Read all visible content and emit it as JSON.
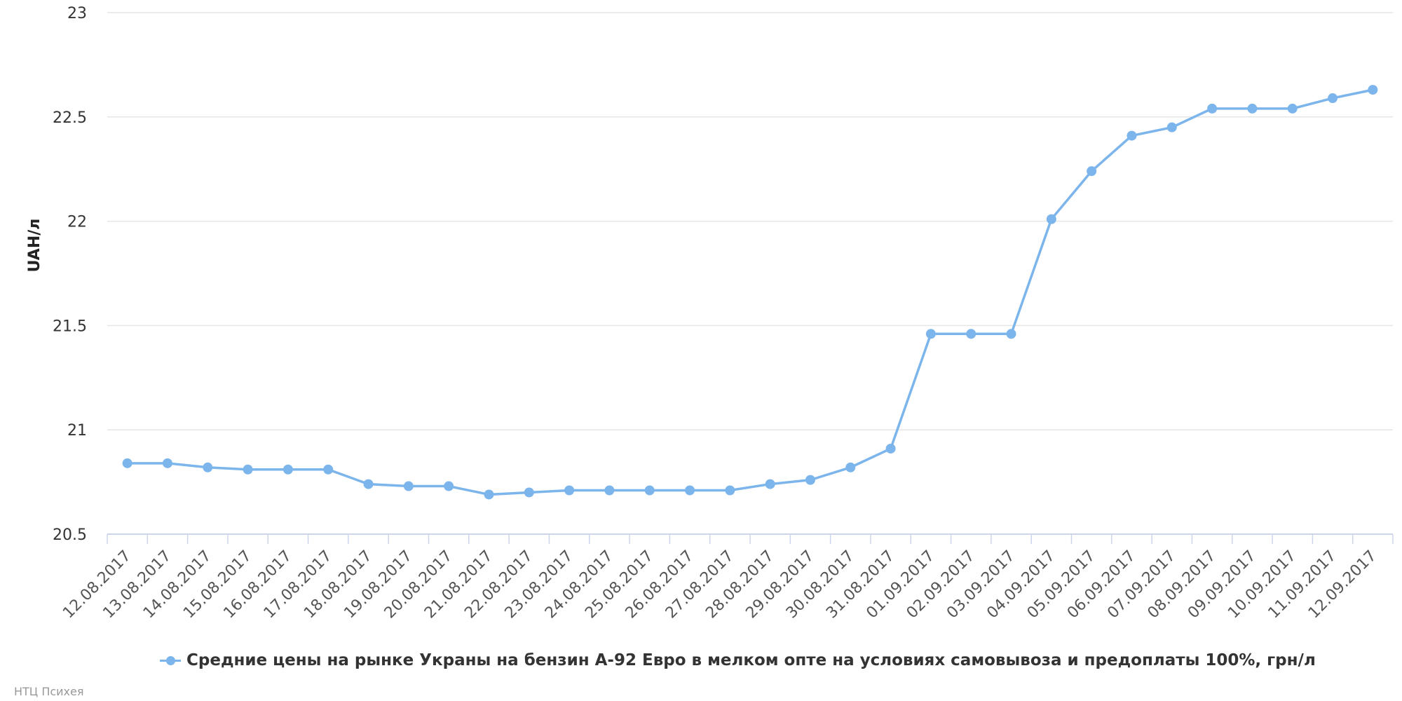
{
  "chart_data": {
    "type": "line",
    "ylabel": "UAH/л",
    "ylim": [
      20.5,
      23
    ],
    "yticks": [
      "20.5",
      "21",
      "21.5",
      "22",
      "22.5",
      "23"
    ],
    "grid": true,
    "legend_position": "bottom",
    "categories": [
      "12.08.2017",
      "13.08.2017",
      "14.08.2017",
      "15.08.2017",
      "16.08.2017",
      "17.08.2017",
      "18.08.2017",
      "19.08.2017",
      "20.08.2017",
      "21.08.2017",
      "22.08.2017",
      "23.08.2017",
      "24.08.2017",
      "25.08.2017",
      "26.08.2017",
      "27.08.2017",
      "28.08.2017",
      "29.08.2017",
      "30.08.2017",
      "31.08.2017",
      "01.09.2017",
      "02.09.2017",
      "03.09.2017",
      "04.09.2017",
      "05.09.2017",
      "06.09.2017",
      "07.09.2017",
      "08.09.2017",
      "09.09.2017",
      "10.09.2017",
      "11.09.2017",
      "12.09.2017"
    ],
    "series": [
      {
        "name": "Средние цены на рынке Украны на бензин А-92 Евро в мелком опте на условиях самовывоза и предоплаты 100%, грн/л",
        "color": "#7cb5ec",
        "values": [
          20.84,
          20.84,
          20.82,
          20.81,
          20.81,
          20.81,
          20.74,
          20.73,
          20.73,
          20.69,
          20.7,
          20.71,
          20.71,
          20.71,
          20.71,
          20.71,
          20.74,
          20.76,
          20.82,
          20.91,
          21.46,
          21.46,
          21.46,
          22.01,
          22.24,
          22.41,
          22.45,
          22.54,
          22.54,
          22.54,
          22.59,
          22.63
        ]
      }
    ]
  },
  "credits": "НТЦ Психея"
}
